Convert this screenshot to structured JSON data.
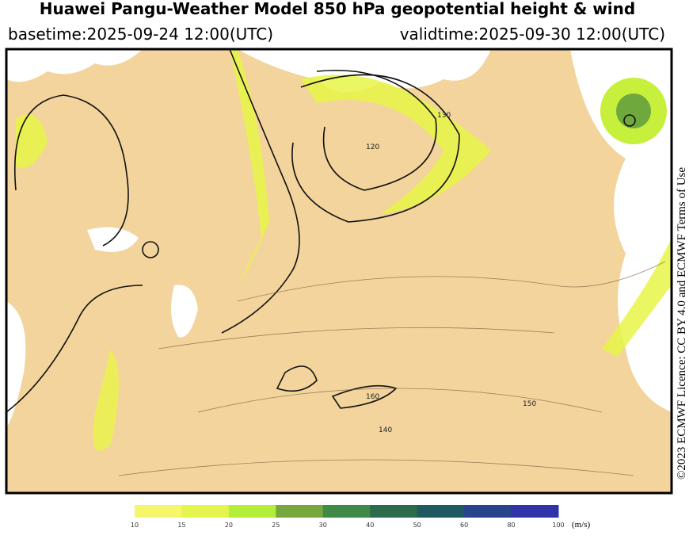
{
  "header": {
    "title": "Huawei Pangu-Weather Model 850 hPa geopotential height & wind",
    "basetime": "basetime:2025-09-24 12:00(UTC)",
    "validtime": "validtime:2025-09-30 12:00(UTC)"
  },
  "map": {
    "contour_labels": [
      "120",
      "130",
      "160",
      "140",
      "150"
    ]
  },
  "colorbar": {
    "ticks": [
      10,
      15,
      20,
      25,
      30,
      40,
      50,
      60,
      80,
      100
    ],
    "colors": [
      "#f6f66a",
      "#e4f54e",
      "#b5ee3a",
      "#76a83e",
      "#3f8a48",
      "#2c6c4c",
      "#1f5a62",
      "#28448c",
      "#3034a8"
    ],
    "unit": "(m/s)"
  },
  "license": "©2023 ECMWF Licence: CC BY 4.0 and ECMWF Terms of Use"
}
